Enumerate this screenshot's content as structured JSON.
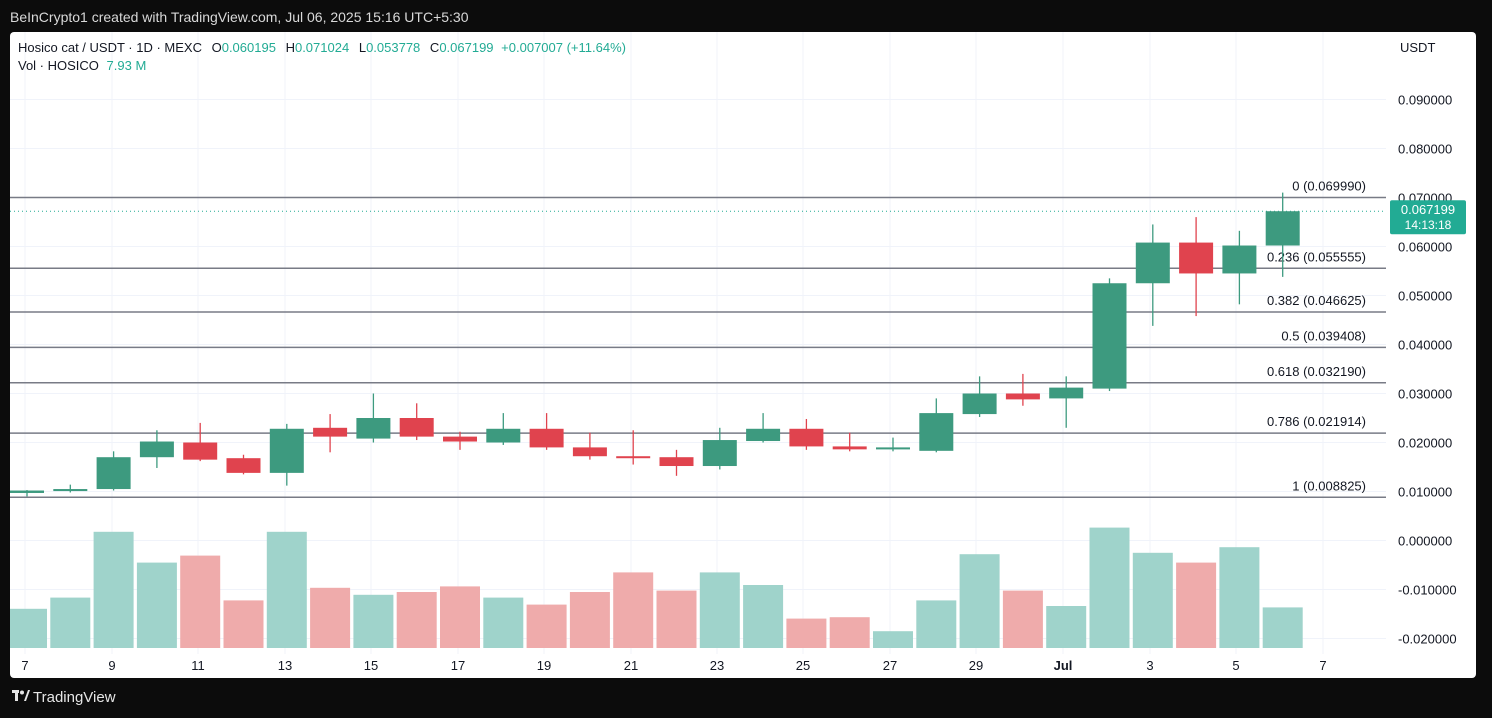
{
  "header": {
    "attribution": "BeInCrypto1 created with TradingView.com, Jul 06, 2025 15:16 UTC+5:30"
  },
  "legend": {
    "symbol": "Hosico cat / USDT · 1D · MEXC",
    "open_label": "O",
    "open": "0.060195",
    "high_label": "H",
    "high": "0.071024",
    "low_label": "L",
    "low": "0.053778",
    "close_label": "C",
    "close": "0.067199",
    "change": "+0.007007 (+11.64%)",
    "vol_label": "Vol · HOSICO",
    "vol_value": "7.93 M"
  },
  "axis": {
    "currency": "USDT"
  },
  "last_price": {
    "price": "0.067199",
    "countdown": "14:13:18"
  },
  "footer": {
    "brand": "TradingView"
  },
  "colors": {
    "up": "#22ab94",
    "down": "#f23645",
    "up_candle": "#3d9a7f",
    "down_candle": "#e0434e",
    "vol_up": "#9fd3cb",
    "vol_down": "#efabab"
  },
  "chart_data": {
    "type": "candlestick",
    "y_ticks": [
      "0.090000",
      "0.080000",
      "0.070000",
      "0.060000",
      "0.050000",
      "0.040000",
      "0.030000",
      "0.020000",
      "0.010000",
      "0.000000",
      "-0.010000",
      "-0.020000"
    ],
    "y_range": [
      -0.0245,
      0.0955
    ],
    "x_labels": [
      "7",
      "9",
      "11",
      "13",
      "15",
      "17",
      "19",
      "21",
      "23",
      "25",
      "27",
      "29",
      "Jul",
      "3",
      "5",
      "7"
    ],
    "fib_levels": [
      {
        "label": "0 (0.069990)",
        "value": 0.06999
      },
      {
        "label": "0.236 (0.055555)",
        "value": 0.055555
      },
      {
        "label": "0.382 (0.046625)",
        "value": 0.046625
      },
      {
        "label": "0.5 (0.039408)",
        "value": 0.039408
      },
      {
        "label": "0.618 (0.032190)",
        "value": 0.03219
      },
      {
        "label": "0.786 (0.021914)",
        "value": 0.021914
      },
      {
        "label": "1 (0.008825)",
        "value": 0.008825
      }
    ],
    "candles": [
      {
        "o": 0.0097,
        "h": 0.0103,
        "l": 0.009,
        "c": 0.0102,
        "v": 0.28
      },
      {
        "o": 0.0101,
        "h": 0.0114,
        "l": 0.0098,
        "c": 0.0105,
        "v": 0.36
      },
      {
        "o": 0.0105,
        "h": 0.0182,
        "l": 0.0102,
        "c": 0.017,
        "v": 0.83
      },
      {
        "o": 0.017,
        "h": 0.0225,
        "l": 0.0148,
        "c": 0.0202,
        "v": 0.61
      },
      {
        "o": 0.02,
        "h": 0.024,
        "l": 0.0162,
        "c": 0.0165,
        "v": 0.66
      },
      {
        "o": 0.0168,
        "h": 0.0175,
        "l": 0.0135,
        "c": 0.0138,
        "v": 0.34
      },
      {
        "o": 0.0138,
        "h": 0.0238,
        "l": 0.0112,
        "c": 0.0228,
        "v": 0.83
      },
      {
        "o": 0.023,
        "h": 0.0258,
        "l": 0.018,
        "c": 0.0212,
        "v": 0.43
      },
      {
        "o": 0.0208,
        "h": 0.03,
        "l": 0.02,
        "c": 0.025,
        "v": 0.38
      },
      {
        "o": 0.025,
        "h": 0.028,
        "l": 0.0205,
        "c": 0.0212,
        "v": 0.4
      },
      {
        "o": 0.0212,
        "h": 0.0222,
        "l": 0.0185,
        "c": 0.0202,
        "v": 0.44
      },
      {
        "o": 0.02,
        "h": 0.026,
        "l": 0.0195,
        "c": 0.0228,
        "v": 0.36
      },
      {
        "o": 0.0228,
        "h": 0.026,
        "l": 0.0185,
        "c": 0.019,
        "v": 0.31
      },
      {
        "o": 0.019,
        "h": 0.022,
        "l": 0.0165,
        "c": 0.0172,
        "v": 0.4
      },
      {
        "o": 0.0172,
        "h": 0.0225,
        "l": 0.0155,
        "c": 0.017,
        "v": 0.54
      },
      {
        "o": 0.017,
        "h": 0.0185,
        "l": 0.0132,
        "c": 0.0152,
        "v": 0.41
      },
      {
        "o": 0.0152,
        "h": 0.023,
        "l": 0.0145,
        "c": 0.0205,
        "v": 0.54
      },
      {
        "o": 0.0203,
        "h": 0.026,
        "l": 0.02,
        "c": 0.0228,
        "v": 0.45
      },
      {
        "o": 0.0228,
        "h": 0.0248,
        "l": 0.0185,
        "c": 0.0192,
        "v": 0.21
      },
      {
        "o": 0.0192,
        "h": 0.022,
        "l": 0.0182,
        "c": 0.0186,
        "v": 0.22
      },
      {
        "o": 0.0188,
        "h": 0.021,
        "l": 0.0182,
        "c": 0.019,
        "v": 0.12
      },
      {
        "o": 0.0183,
        "h": 0.029,
        "l": 0.018,
        "c": 0.026,
        "v": 0.34
      },
      {
        "o": 0.0258,
        "h": 0.0335,
        "l": 0.0252,
        "c": 0.03,
        "v": 0.67
      },
      {
        "o": 0.03,
        "h": 0.034,
        "l": 0.0275,
        "c": 0.0288,
        "v": 0.41
      },
      {
        "o": 0.029,
        "h": 0.0335,
        "l": 0.023,
        "c": 0.0312,
        "v": 0.3
      },
      {
        "o": 0.031,
        "h": 0.0535,
        "l": 0.0305,
        "c": 0.0525,
        "v": 0.86
      },
      {
        "o": 0.0525,
        "h": 0.0645,
        "l": 0.0438,
        "c": 0.0608,
        "v": 0.68
      },
      {
        "o": 0.0608,
        "h": 0.066,
        "l": 0.0458,
        "c": 0.0545,
        "v": 0.61
      },
      {
        "o": 0.0545,
        "h": 0.0632,
        "l": 0.0482,
        "c": 0.0602,
        "v": 0.72
      },
      {
        "o": 0.0602,
        "h": 0.071,
        "l": 0.0538,
        "c": 0.0672,
        "v": 0.29
      }
    ]
  }
}
